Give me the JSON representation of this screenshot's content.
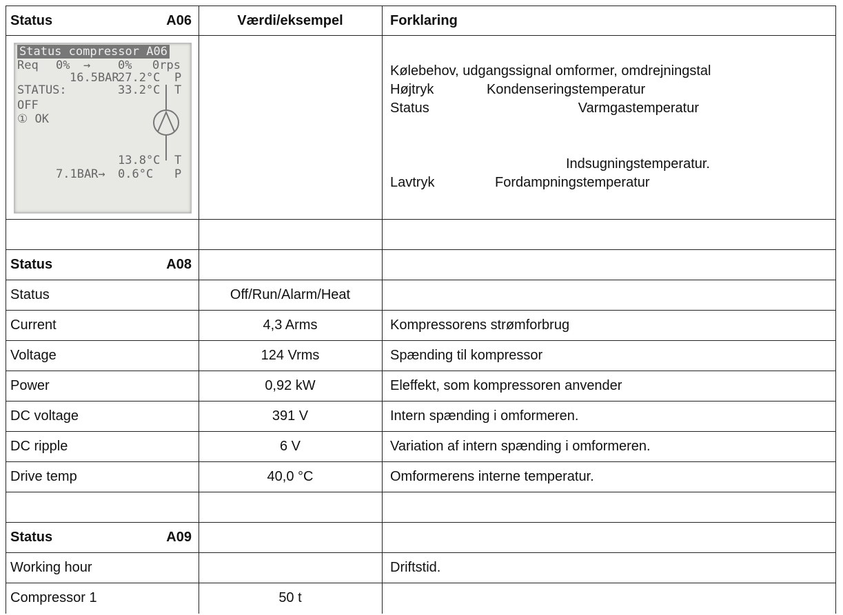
{
  "header": {
    "label": "Status",
    "code": "A06",
    "value_heading": "Værdi/eksempel",
    "explanation_heading": "Forklaring"
  },
  "lcd": {
    "title": "Status compressor A06",
    "items": [
      "Req",
      "0%",
      "→",
      "0%",
      "0rps",
      "16.5BAR",
      "27.2°C",
      "P",
      "STATUS:",
      "33.2°C",
      "T",
      "OFF",
      "① OK",
      "13.8°C",
      "T",
      "7.1BAR→",
      "0.6°C",
      "P"
    ]
  },
  "lcd_explanation": {
    "demand": "Kølebehov, udgangssignal omformer, omdrejningstal",
    "high_pressure": {
      "label": "Højtryk",
      "text": "Kondenseringstemperatur"
    },
    "status": {
      "label": "Status",
      "text": "Varmgastemperatur"
    },
    "suction": "Indsugningstemperatur.",
    "low_pressure": {
      "label": "Lavtryk",
      "text": "Fordampningstemperatur"
    }
  },
  "sections": [
    {
      "label": "Status",
      "code": "A08",
      "rows": [
        {
          "name": "Status",
          "value": "Off/Run/Alarm/Heat"
        },
        {
          "name": "Current",
          "value": "4,3 Arms",
          "explanation": "Kompressorens strømforbrug"
        },
        {
          "name": "Voltage",
          "value": "124 Vrms",
          "explanation": "Spænding til kompressor"
        },
        {
          "name": "Power",
          "value": "0,92 kW",
          "explanation": "Eleffekt, som kompressoren anvender"
        },
        {
          "name": "DC voltage",
          "value": "391 V",
          "explanation": "Intern spænding i omformeren."
        },
        {
          "name": "DC ripple",
          "value": "6 V",
          "explanation": "Variation af intern spænding i omformeren."
        },
        {
          "name": "Drive temp",
          "value": "40,0 °C",
          "explanation": "Omformerens interne temperatur."
        }
      ]
    },
    {
      "label": "Status",
      "code": "A09",
      "rows": [
        {
          "name": "Working hour",
          "explanation": "Driftstid."
        },
        {
          "name": "Compressor 1",
          "value": "50 t"
        }
      ]
    }
  ]
}
